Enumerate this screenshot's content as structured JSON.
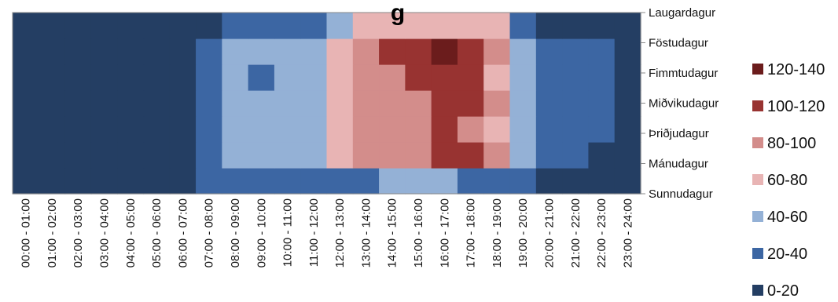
{
  "chart_data": {
    "type": "heatmap",
    "title": "g",
    "x_categories": [
      "00:00 - 01:00",
      "01:00 - 02:00",
      "02:00 - 03:00",
      "03:00 - 04:00",
      "04:00 - 05:00",
      "05:00 - 06:00",
      "06:00 - 07:00",
      "07:00 - 08:00",
      "08:00 - 09:00",
      "09:00 - 10:00",
      "10:00 - 11:00",
      "11:00 - 12:00",
      "12:00 - 13:00",
      "13:00 - 14:00",
      "14:00 - 15:00",
      "15:00 - 16:00",
      "16:00 - 17:00",
      "17:00 - 18:00",
      "18:00 - 19:00",
      "19:00 - 20:00",
      "20:00 - 21:00",
      "21:00 - 22:00",
      "22:00 - 23:00",
      "23:00 - 24:00"
    ],
    "y_categories": [
      "Sunnudagur",
      "Mánudagur",
      "Þriðjudagur",
      "Miðvikudagur",
      "Fimmtudagur",
      "Föstudagur",
      "Laugardagur"
    ],
    "legend": [
      {
        "label": "120-140",
        "color": "#6b1c1c"
      },
      {
        "label": "100-120",
        "color": "#983331"
      },
      {
        "label": "80-100",
        "color": "#d38d8b"
      },
      {
        "label": "60-80",
        "color": "#e8b4b4"
      },
      {
        "label": "40-60",
        "color": "#94b1d6"
      },
      {
        "label": "20-40",
        "color": "#3c66a3"
      },
      {
        "label": "0-20",
        "color": "#243e63"
      }
    ],
    "values": [
      [
        5,
        5,
        5,
        5,
        5,
        5,
        5,
        25,
        30,
        30,
        30,
        30,
        35,
        38,
        40,
        45,
        40,
        38,
        35,
        25,
        15,
        10,
        5,
        5
      ],
      [
        5,
        5,
        5,
        5,
        5,
        5,
        5,
        30,
        45,
        45,
        45,
        50,
        65,
        80,
        90,
        95,
        110,
        100,
        80,
        45,
        30,
        25,
        15,
        5
      ],
      [
        5,
        5,
        5,
        5,
        5,
        5,
        5,
        30,
        45,
        45,
        45,
        55,
        70,
        80,
        85,
        85,
        110,
        90,
        75,
        45,
        30,
        30,
        25,
        15
      ],
      [
        5,
        5,
        5,
        5,
        5,
        5,
        5,
        30,
        45,
        45,
        45,
        50,
        65,
        80,
        85,
        90,
        110,
        100,
        80,
        45,
        30,
        30,
        25,
        15
      ],
      [
        5,
        5,
        5,
        5,
        5,
        5,
        5,
        30,
        45,
        25,
        45,
        50,
        60,
        80,
        85,
        100,
        110,
        100,
        75,
        45,
        30,
        30,
        25,
        15
      ],
      [
        5,
        5,
        5,
        5,
        5,
        15,
        5,
        30,
        45,
        45,
        45,
        50,
        70,
        90,
        110,
        115,
        125,
        105,
        80,
        45,
        30,
        30,
        25,
        15
      ],
      [
        5,
        5,
        5,
        5,
        5,
        5,
        5,
        15,
        25,
        30,
        30,
        35,
        50,
        60,
        70,
        70,
        75,
        65,
        60,
        35,
        15,
        10,
        5,
        15
      ]
    ],
    "xlabel": "",
    "ylabel": "",
    "legend_position": "right"
  }
}
